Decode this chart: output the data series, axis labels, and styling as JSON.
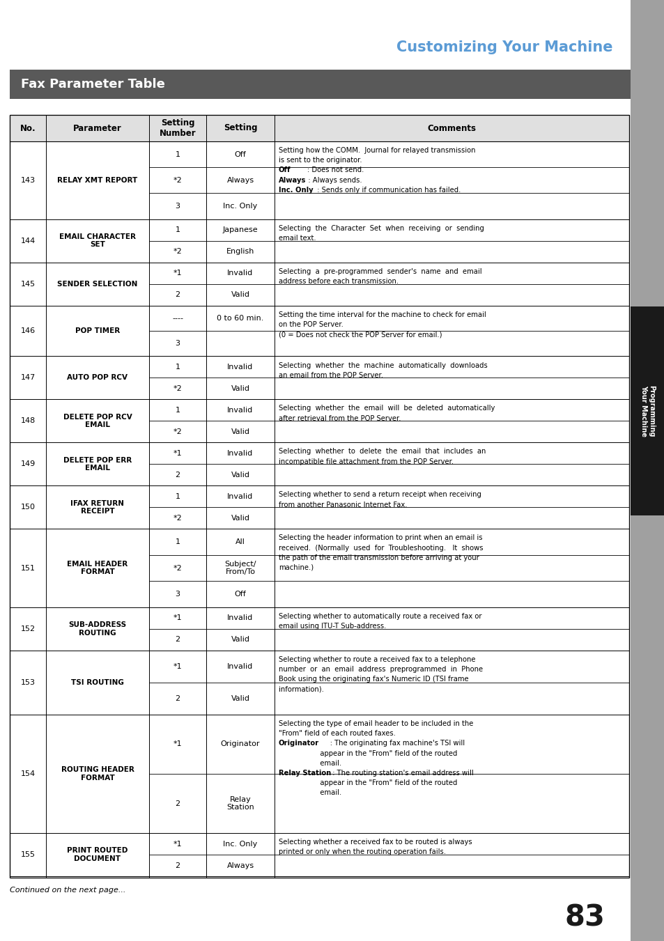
{
  "page_title": "Customizing Your Machine",
  "section_title": "Fax Parameter Table",
  "title_color": "#5b9bd5",
  "section_bg": "#595959",
  "section_text_color": "#ffffff",
  "sidebar_text": "Programming\nYour Machine",
  "sidebar_bg": "#1a1a1a",
  "sidebar_gray": "#909090",
  "page_number": "83",
  "footer_text": "Continued on the next page...",
  "col_headers": [
    "No.",
    "Parameter",
    "Setting\nNumber",
    "Setting",
    "Comments"
  ],
  "rows": [
    {
      "no": "143",
      "param": "RELAY XMT REPORT",
      "subrows": [
        {
          "num": "1",
          "setting": "Off"
        },
        {
          "num": "*2",
          "setting": "Always"
        },
        {
          "num": "3",
          "setting": "Inc. Only"
        }
      ],
      "comment_lines": [
        [
          "normal",
          "Setting how the COMM.  Journal for relayed transmission"
        ],
        [
          "normal",
          "is sent to the originator."
        ],
        [
          "bold",
          "Off",
          "normal",
          "        : Does not send."
        ],
        [
          "bold",
          "Always",
          "normal",
          "   : Always sends."
        ],
        [
          "bold",
          "Inc. Only",
          "normal",
          "  : Sends only if communication has failed."
        ]
      ]
    },
    {
      "no": "144",
      "param": "EMAIL CHARACTER\nSET",
      "subrows": [
        {
          "num": "1",
          "setting": "Japanese"
        },
        {
          "num": "*2",
          "setting": "English"
        }
      ],
      "comment_lines": [
        [
          "normal",
          "Selecting  the  Character  Set  when  receiving  or  sending"
        ],
        [
          "normal",
          "email text."
        ]
      ]
    },
    {
      "no": "145",
      "param": "SENDER SELECTION",
      "subrows": [
        {
          "num": "*1",
          "setting": "Invalid"
        },
        {
          "num": "2",
          "setting": "Valid"
        }
      ],
      "comment_lines": [
        [
          "normal",
          "Selecting  a  pre-programmed  sender's  name  and  email"
        ],
        [
          "normal",
          "address before each transmission."
        ]
      ]
    },
    {
      "no": "146",
      "param": "POP TIMER",
      "subrows": [
        {
          "num": "----",
          "setting": "0 to 60 min."
        },
        {
          "num": "3",
          "setting": ""
        }
      ],
      "comment_lines": [
        [
          "normal",
          "Setting the time interval for the machine to check for email"
        ],
        [
          "normal",
          "on the POP Server."
        ],
        [
          "normal",
          "(0 = Does not check the POP Server for email.)"
        ]
      ]
    },
    {
      "no": "147",
      "param": "AUTO POP RCV",
      "subrows": [
        {
          "num": "1",
          "setting": "Invalid"
        },
        {
          "num": "*2",
          "setting": "Valid"
        }
      ],
      "comment_lines": [
        [
          "normal",
          "Selecting  whether  the  machine  automatically  downloads"
        ],
        [
          "normal",
          "an email from the POP Server."
        ]
      ]
    },
    {
      "no": "148",
      "param": "DELETE POP RCV\nEMAIL",
      "subrows": [
        {
          "num": "1",
          "setting": "Invalid"
        },
        {
          "num": "*2",
          "setting": "Valid"
        }
      ],
      "comment_lines": [
        [
          "normal",
          "Selecting  whether  the  email  will  be  deleted  automatically"
        ],
        [
          "normal",
          "after retrieval from the POP Server."
        ]
      ]
    },
    {
      "no": "149",
      "param": "DELETE POP ERR\nEMAIL",
      "subrows": [
        {
          "num": "*1",
          "setting": "Invalid"
        },
        {
          "num": "2",
          "setting": "Valid"
        }
      ],
      "comment_lines": [
        [
          "normal",
          "Selecting  whether  to  delete  the  email  that  includes  an"
        ],
        [
          "normal",
          "incompatible file attachment from the POP Server."
        ]
      ]
    },
    {
      "no": "150",
      "param": "IFAX RETURN\nRECEIPT",
      "subrows": [
        {
          "num": "1",
          "setting": "Invalid"
        },
        {
          "num": "*2",
          "setting": "Valid"
        }
      ],
      "comment_lines": [
        [
          "normal",
          "Selecting whether to send a return receipt when receiving"
        ],
        [
          "normal",
          "from another Panasonic Internet Fax."
        ]
      ]
    },
    {
      "no": "151",
      "param": "EMAIL HEADER\nFORMAT",
      "subrows": [
        {
          "num": "1",
          "setting": "All"
        },
        {
          "num": "*2",
          "setting": "Subject/\nFrom/To"
        },
        {
          "num": "3",
          "setting": "Off"
        }
      ],
      "comment_lines": [
        [
          "normal",
          "Selecting the header information to print when an email is"
        ],
        [
          "normal",
          "received.  (Normally  used  for  Troubleshooting.   It  shows"
        ],
        [
          "normal",
          "the path of the email transmission before arriving at your"
        ],
        [
          "normal",
          "machine.)"
        ]
      ]
    },
    {
      "no": "152",
      "param": "SUB-ADDRESS\nROUTING",
      "subrows": [
        {
          "num": "*1",
          "setting": "Invalid"
        },
        {
          "num": "2",
          "setting": "Valid"
        }
      ],
      "comment_lines": [
        [
          "normal",
          "Selecting whether to automatically route a received fax or"
        ],
        [
          "normal",
          "email using ITU-T Sub-address."
        ]
      ]
    },
    {
      "no": "153",
      "param": "TSI ROUTING",
      "subrows": [
        {
          "num": "*1",
          "setting": "Invalid"
        },
        {
          "num": "2",
          "setting": "Valid"
        }
      ],
      "comment_lines": [
        [
          "normal",
          "Selecting whether to route a received fax to a telephone"
        ],
        [
          "normal",
          "number  or  an  email  address  preprogrammed  in  Phone"
        ],
        [
          "normal",
          "Book using the originating fax's Numeric ID (TSI frame"
        ],
        [
          "normal",
          "information)."
        ]
      ]
    },
    {
      "no": "154",
      "param": "ROUTING HEADER\nFORMAT",
      "subrows": [
        {
          "num": "*1",
          "setting": "Originator"
        },
        {
          "num": "2",
          "setting": "Relay\nStation"
        }
      ],
      "comment_lines": [
        [
          "normal",
          "Selecting the type of email header to be included in the"
        ],
        [
          "normal",
          "\"From\" field of each routed faxes."
        ],
        [
          "bold",
          "Originator",
          "normal",
          "      : The originating fax machine's TSI will"
        ],
        [
          "normal",
          "                   appear in the \"From\" field of the routed"
        ],
        [
          "normal",
          "                   email."
        ],
        [
          "bold",
          "Relay Station",
          "normal",
          "  : The routing station's email address will"
        ],
        [
          "normal",
          "                   appear in the \"From\" field of the routed"
        ],
        [
          "normal",
          "                   email."
        ]
      ]
    },
    {
      "no": "155",
      "param": "PRINT ROUTED\nDOCUMENT",
      "subrows": [
        {
          "num": "*1",
          "setting": "Inc. Only"
        },
        {
          "num": "2",
          "setting": "Always"
        }
      ],
      "comment_lines": [
        [
          "normal",
          "Selecting whether a received fax to be routed is always"
        ],
        [
          "normal",
          "printed or only when the routing operation fails."
        ]
      ]
    }
  ]
}
